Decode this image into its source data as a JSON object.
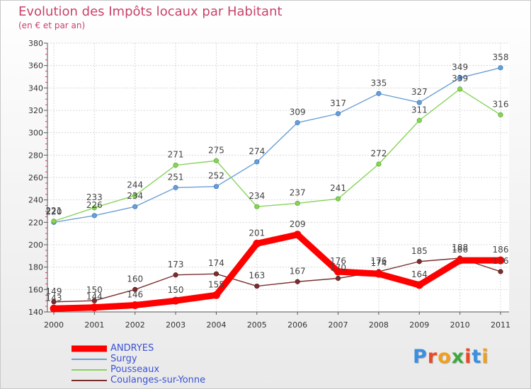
{
  "chart_data": {
    "type": "line",
    "title": "Evolution des Impôts locaux par Habitant",
    "subtitle": "(en € et par an)",
    "x": [
      "2000",
      "2001",
      "2002",
      "2003",
      "2004",
      "2005",
      "2006",
      "2007",
      "2008",
      "2009",
      "2010",
      "2011"
    ],
    "ylim": [
      140,
      380
    ],
    "yticks": [
      140,
      160,
      180,
      200,
      220,
      240,
      260,
      280,
      300,
      320,
      340,
      360,
      380
    ],
    "grid": true,
    "legend_position": "bottom-left",
    "series": [
      {
        "name": "ANDRYES",
        "color": "#ff0000",
        "values": [
          143,
          144,
          146,
          150,
          155,
          201,
          209,
          176,
          174,
          164,
          186,
          186
        ]
      },
      {
        "name": "Surgy",
        "color": "#6a9fd6",
        "values": [
          220,
          226,
          234,
          251,
          252,
          274,
          309,
          317,
          335,
          327,
          349,
          358
        ]
      },
      {
        "name": "Pousseaux",
        "color": "#88d35a",
        "values": [
          221,
          233,
          244,
          271,
          275,
          234,
          237,
          241,
          272,
          311,
          339,
          316
        ]
      },
      {
        "name": "Coulanges-sur-Yonne",
        "color": "#7a2e2e",
        "values": [
          149,
          150,
          160,
          173,
          174,
          163,
          167,
          170,
          176,
          185,
          188,
          176
        ]
      }
    ]
  },
  "logo": {
    "text": "Proxiti",
    "letters": [
      "P",
      "r",
      "o",
      "x",
      "i",
      "t",
      "i"
    ],
    "colors": [
      "#3c8fe0",
      "#e94a2a",
      "#f0a020",
      "#3ea83e",
      "#e94a2a",
      "#3c8fe0",
      "#f0a020"
    ]
  }
}
